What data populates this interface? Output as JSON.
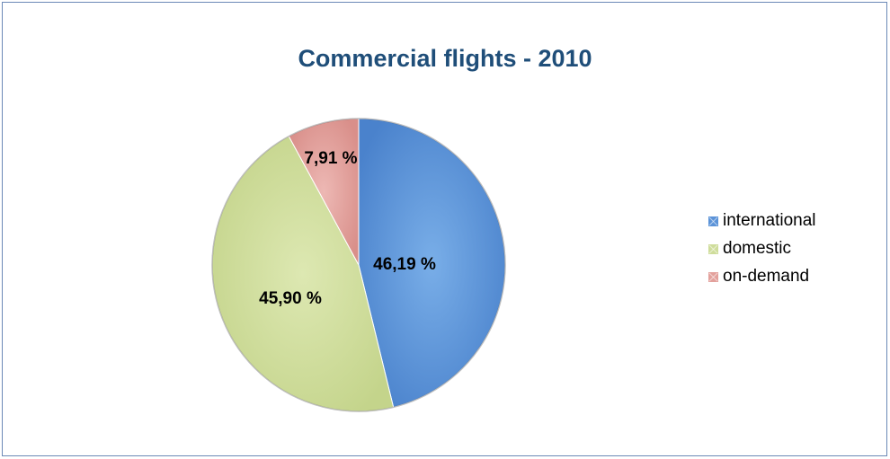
{
  "chart_data": {
    "type": "pie",
    "title": "Commercial flights - 2010",
    "categories": [
      "international",
      "domestic",
      "on-demand"
    ],
    "values": [
      46.19,
      45.9,
      7.91
    ],
    "data_labels": [
      "46,19 %",
      "45,90 %",
      "7,91 %"
    ],
    "colors": [
      "#5b93d8",
      "#cfdd9b",
      "#e3a19c"
    ],
    "legend_position": "right"
  }
}
